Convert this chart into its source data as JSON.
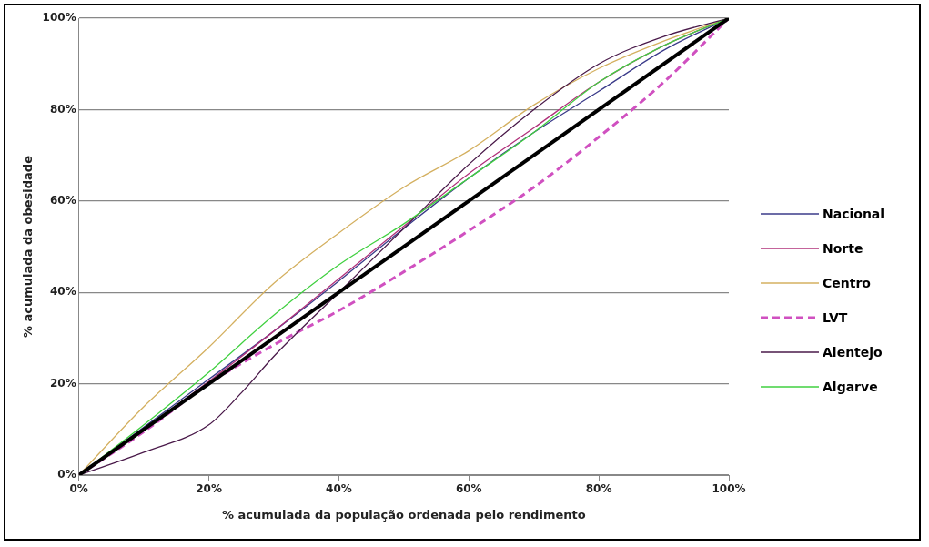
{
  "chart_data": {
    "type": "line",
    "xlabel": "% acumulada da população ordenada pelo rendimento",
    "ylabel": "% acumulada da obesidade",
    "xlim": [
      0,
      100
    ],
    "ylim": [
      0,
      100
    ],
    "xticks": [
      {
        "value": 0,
        "label": "0%"
      },
      {
        "value": 20,
        "label": "20%"
      },
      {
        "value": 40,
        "label": "40%"
      },
      {
        "value": 60,
        "label": "60%"
      },
      {
        "value": 80,
        "label": "80%"
      },
      {
        "value": 100,
        "label": "100%"
      }
    ],
    "yticks": [
      {
        "value": 0,
        "label": "0%"
      },
      {
        "value": 20,
        "label": "20%"
      },
      {
        "value": 40,
        "label": "40%"
      },
      {
        "value": 60,
        "label": "60%"
      },
      {
        "value": 80,
        "label": "80%"
      },
      {
        "value": 100,
        "label": "100%"
      }
    ],
    "grid": "y",
    "legend": "right",
    "marker": "none",
    "series": [
      {
        "color": "#000000",
        "x": [
          0,
          100
        ],
        "values": [
          0,
          100
        ]
      },
      {
        "name": "Nacional",
        "color": "#3b3b8a",
        "x": [
          0,
          10,
          20,
          30,
          40,
          50,
          60,
          70,
          80,
          90,
          100
        ],
        "values": [
          0,
          10.5,
          21,
          31.5,
          42.5,
          54,
          65,
          75,
          84,
          93,
          100
        ]
      },
      {
        "name": "Norte",
        "color": "#b0307a",
        "x": [
          0,
          10,
          20,
          30,
          40,
          50,
          60,
          70,
          80,
          90,
          100
        ],
        "values": [
          0,
          10,
          20.5,
          31.5,
          43,
          54.5,
          66,
          76,
          86,
          94,
          100
        ]
      },
      {
        "name": "Centro",
        "color": "#d4b060",
        "x": [
          0,
          10,
          20,
          30,
          40,
          50,
          60,
          70,
          80,
          90,
          100
        ],
        "values": [
          0,
          15,
          28,
          42,
          53,
          63,
          71,
          81,
          89,
          95,
          100
        ]
      },
      {
        "name": "LVT",
        "color": "#d050c0",
        "line_style": "dashed",
        "x": [
          0,
          10,
          20,
          30,
          40,
          50,
          60,
          70,
          80,
          90,
          100
        ],
        "values": [
          0,
          9.5,
          20,
          28.5,
          36,
          44.5,
          53.5,
          63,
          74,
          86,
          100
        ]
      },
      {
        "name": "Alentejo",
        "color": "#4a1a4a",
        "x": [
          0,
          10,
          20,
          25,
          30,
          40,
          50,
          60,
          70,
          80,
          90,
          100
        ],
        "values": [
          0,
          5,
          11,
          18,
          26,
          40,
          54,
          68,
          80,
          90,
          96,
          100
        ]
      },
      {
        "name": "Algarve",
        "color": "#40d040",
        "x": [
          0,
          10,
          20,
          30,
          40,
          50,
          60,
          70,
          80,
          90,
          100
        ],
        "values": [
          0,
          11,
          22.5,
          35,
          46,
          55,
          65,
          75,
          86,
          94,
          100
        ]
      }
    ]
  }
}
